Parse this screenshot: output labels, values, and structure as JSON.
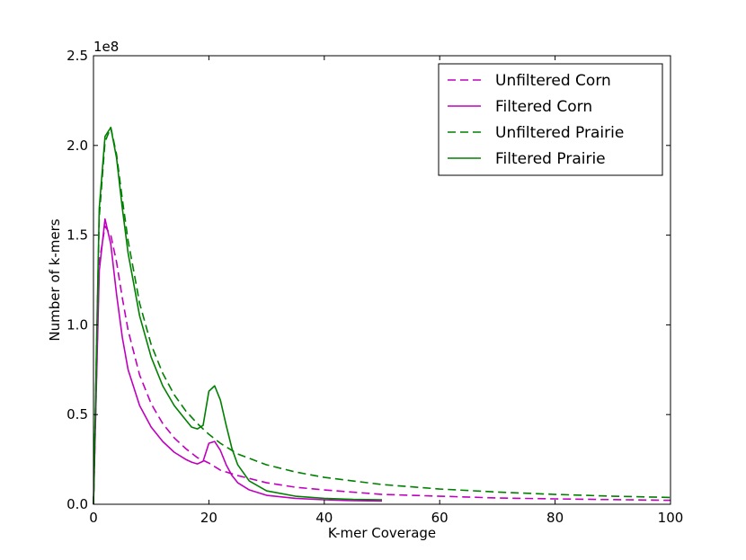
{
  "chart_data": {
    "type": "line",
    "xlabel": "K-mer Coverage",
    "ylabel": "Number of k-mers",
    "offset_text": "1e8",
    "xlim": [
      0,
      100
    ],
    "ylim": [
      0,
      2.5
    ],
    "x_ticks": [
      "0",
      "20",
      "40",
      "60",
      "80",
      "100"
    ],
    "y_ticks": [
      "0.0",
      "0.5",
      "1.0",
      "1.5",
      "2.0",
      "2.5"
    ],
    "legend_position": "top-right",
    "series": [
      {
        "name": "Unfiltered Corn",
        "color": "#bf00bf",
        "style": "dashed",
        "x": [
          0,
          1,
          2,
          3,
          4,
          5,
          6,
          8,
          10,
          12,
          14,
          16,
          18,
          20,
          22,
          25,
          30,
          35,
          40,
          50,
          60,
          70,
          80,
          90,
          100
        ],
        "y": [
          0.0,
          1.35,
          1.55,
          1.5,
          1.35,
          1.15,
          0.97,
          0.72,
          0.56,
          0.45,
          0.37,
          0.31,
          0.26,
          0.23,
          0.19,
          0.16,
          0.12,
          0.095,
          0.08,
          0.055,
          0.045,
          0.035,
          0.03,
          0.026,
          0.022
        ]
      },
      {
        "name": "Filtered Corn",
        "color": "#bf00bf",
        "style": "solid",
        "x": [
          0,
          1,
          2,
          3,
          4,
          5,
          6,
          8,
          10,
          12,
          14,
          16,
          17,
          18,
          19,
          20,
          21,
          22,
          23,
          24,
          25,
          27,
          30,
          35,
          40,
          45,
          50
        ],
        "y": [
          0.0,
          1.3,
          1.59,
          1.45,
          1.17,
          0.93,
          0.75,
          0.55,
          0.43,
          0.35,
          0.29,
          0.25,
          0.235,
          0.225,
          0.24,
          0.34,
          0.35,
          0.3,
          0.22,
          0.16,
          0.12,
          0.08,
          0.05,
          0.033,
          0.025,
          0.02,
          0.018
        ]
      },
      {
        "name": "Unfiltered Prairie",
        "color": "#008000",
        "style": "dashed",
        "x": [
          0,
          1,
          2,
          3,
          4,
          5,
          6,
          8,
          10,
          12,
          14,
          16,
          18,
          20,
          22,
          25,
          30,
          35,
          40,
          50,
          60,
          70,
          80,
          90,
          100
        ],
        "y": [
          0.0,
          1.6,
          2.02,
          2.1,
          1.95,
          1.7,
          1.47,
          1.12,
          0.89,
          0.73,
          0.61,
          0.52,
          0.45,
          0.39,
          0.34,
          0.28,
          0.22,
          0.18,
          0.15,
          0.11,
          0.085,
          0.068,
          0.055,
          0.045,
          0.038
        ]
      },
      {
        "name": "Filtered Prairie",
        "color": "#008000",
        "style": "solid",
        "x": [
          0,
          1,
          2,
          3,
          4,
          5,
          6,
          8,
          10,
          12,
          14,
          16,
          17,
          18,
          19,
          20,
          21,
          22,
          23,
          24,
          25,
          27,
          30,
          35,
          40,
          45,
          50
        ],
        "y": [
          0.0,
          1.65,
          2.05,
          2.1,
          1.93,
          1.65,
          1.4,
          1.05,
          0.82,
          0.66,
          0.55,
          0.47,
          0.43,
          0.42,
          0.44,
          0.63,
          0.66,
          0.58,
          0.44,
          0.31,
          0.22,
          0.13,
          0.075,
          0.045,
          0.033,
          0.027,
          0.025
        ]
      }
    ]
  }
}
